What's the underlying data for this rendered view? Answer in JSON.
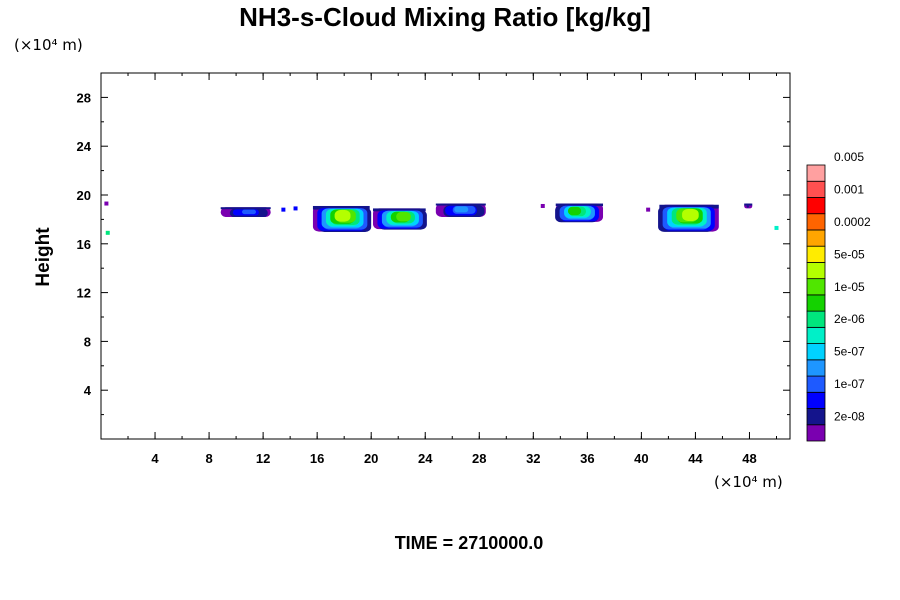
{
  "chart_data": {
    "type": "heatmap",
    "title": "NH3-s-Cloud Mixing Ratio [kg/kg]",
    "x_unit": "(×10⁴ m)",
    "y_unit": "(×10⁴ m)",
    "ylabel": "Height",
    "xlim": [
      0,
      51
    ],
    "ylim": [
      0,
      30
    ],
    "x_ticks": [
      4,
      8,
      12,
      16,
      20,
      24,
      28,
      32,
      36,
      40,
      44,
      48
    ],
    "y_ticks": [
      4,
      8,
      12,
      16,
      20,
      24,
      28
    ],
    "time_label": "TIME = 2710000.0",
    "colorbar": {
      "colors": [
        "#7a00b0",
        "#14148c",
        "#0000ff",
        "#1e5aff",
        "#1e96ff",
        "#00d2ff",
        "#00f0c8",
        "#00e67d",
        "#14d200",
        "#50e600",
        "#b4ff00",
        "#ffec00",
        "#ffa500",
        "#ff6400",
        "#ff0000",
        "#ff5050",
        "#ffa0a0"
      ],
      "labels": [
        "2e-08",
        "1e-07",
        "5e-07",
        "2e-06",
        "1e-05",
        "5e-05",
        "0.0002",
        "0.001",
        "0.005"
      ]
    },
    "clouds": [
      {
        "x0": 8.9,
        "x1": 12.6,
        "y0": 18.2,
        "y1": 19.0,
        "peak": 3
      },
      {
        "x0": 15.8,
        "x1": 20.0,
        "y0": 17.0,
        "y1": 19.1,
        "peak": 10
      },
      {
        "x0": 20.3,
        "x1": 24.2,
        "y0": 17.2,
        "y1": 18.9,
        "peak": 9
      },
      {
        "x0": 25.0,
        "x1": 28.7,
        "y0": 18.2,
        "y1": 19.3,
        "peak": 4
      },
      {
        "x0": 33.5,
        "x1": 37.0,
        "y0": 17.8,
        "y1": 19.3,
        "peak": 8
      },
      {
        "x0": 41.2,
        "x1": 45.6,
        "y0": 17.0,
        "y1": 19.2,
        "peak": 10
      },
      {
        "x0": 47.6,
        "x1": 48.2,
        "y0": 18.9,
        "y1": 19.3,
        "peak": 1
      }
    ],
    "specks": [
      {
        "x": 0.5,
        "y": 16.9,
        "level": 7
      },
      {
        "x": 50.0,
        "y": 17.3,
        "level": 6
      },
      {
        "x": 0.4,
        "y": 19.3,
        "level": 0
      },
      {
        "x": 13.5,
        "y": 18.8,
        "level": 2
      },
      {
        "x": 14.4,
        "y": 18.9,
        "level": 2
      },
      {
        "x": 40.5,
        "y": 18.8,
        "level": 0
      },
      {
        "x": 32.7,
        "y": 19.1,
        "level": 0
      }
    ]
  }
}
